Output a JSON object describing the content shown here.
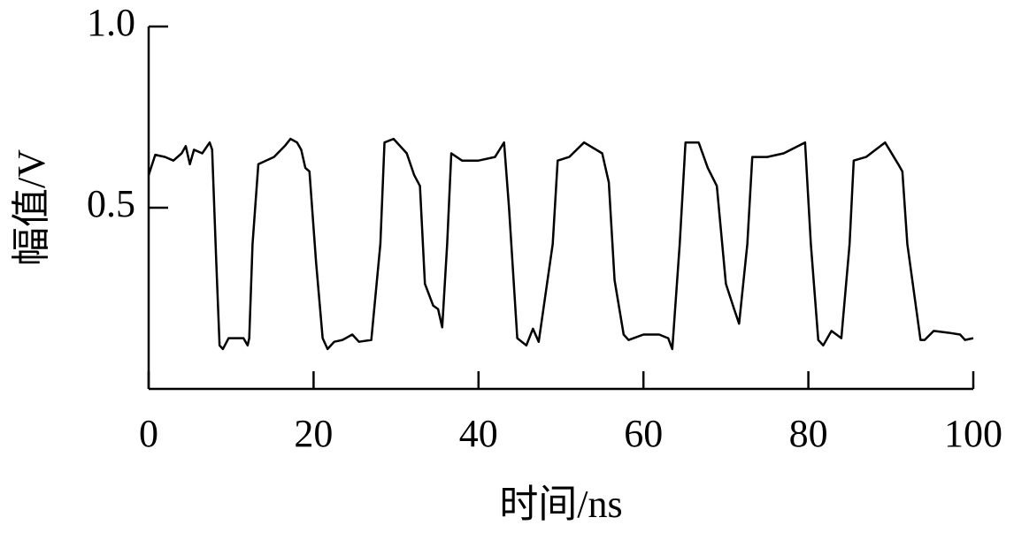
{
  "chart_data": {
    "type": "line",
    "xlabel": "时间/ns",
    "ylabel": "幅值/V",
    "color": "#000000",
    "xlim": [
      0,
      100
    ],
    "xticks": [
      0,
      20,
      40,
      60,
      80,
      100
    ],
    "ylim": [
      0,
      1
    ],
    "yticks": [
      0.5,
      {
        "value": 1,
        "label": "1.0"
      }
    ],
    "x": [
      0,
      0.8,
      2,
      3,
      4,
      4.5,
      5,
      5.5,
      6.5,
      7.4,
      7.7,
      8.2,
      8.6,
      9,
      9.7,
      11.5,
      12,
      12.2,
      12.6,
      13.3,
      15.2,
      16.5,
      17.2,
      18,
      18.5,
      19,
      19.5,
      20.3,
      21.1,
      21.7,
      22.5,
      23.5,
      24.7,
      25.5,
      27,
      28.1,
      28.6,
      29.7,
      31.3,
      32.2,
      32.9,
      33.5,
      34.5,
      35.1,
      35.6,
      36.2,
      36.7,
      38,
      40,
      42,
      43.1,
      43.7,
      44.7,
      45.8,
      46.6,
      47.3,
      49,
      49.6,
      51,
      52.8,
      55,
      55.8,
      56.5,
      57.6,
      58.2,
      60,
      61.9,
      63,
      63.5,
      64.4,
      65.1,
      66.7,
      67.8,
      68.9,
      70,
      71,
      71.6,
      72.6,
      73.2,
      75,
      77,
      79.6,
      80.3,
      81.2,
      81.8,
      82.8,
      84,
      85,
      85.5,
      87,
      89.3,
      90.9,
      91.4,
      92,
      93.6,
      94.1,
      95.2,
      97,
      98.4,
      99,
      100
    ],
    "values": [
      0.59,
      0.646,
      0.64,
      0.63,
      0.65,
      0.67,
      0.62,
      0.66,
      0.65,
      0.68,
      0.66,
      0.35,
      0.12,
      0.11,
      0.14,
      0.14,
      0.12,
      0.14,
      0.4,
      0.62,
      0.64,
      0.67,
      0.69,
      0.68,
      0.66,
      0.61,
      0.6,
      0.35,
      0.14,
      0.11,
      0.13,
      0.135,
      0.15,
      0.13,
      0.135,
      0.4,
      0.68,
      0.69,
      0.65,
      0.59,
      0.56,
      0.29,
      0.23,
      0.22,
      0.17,
      0.4,
      0.65,
      0.63,
      0.63,
      0.64,
      0.68,
      0.5,
      0.14,
      0.12,
      0.166,
      0.13,
      0.4,
      0.63,
      0.64,
      0.68,
      0.65,
      0.57,
      0.3,
      0.15,
      0.135,
      0.15,
      0.15,
      0.14,
      0.11,
      0.4,
      0.68,
      0.68,
      0.61,
      0.56,
      0.29,
      0.22,
      0.18,
      0.4,
      0.64,
      0.64,
      0.65,
      0.68,
      0.4,
      0.135,
      0.12,
      0.16,
      0.14,
      0.4,
      0.63,
      0.64,
      0.68,
      0.62,
      0.6,
      0.4,
      0.135,
      0.135,
      0.16,
      0.155,
      0.15,
      0.135,
      0.14
    ]
  }
}
